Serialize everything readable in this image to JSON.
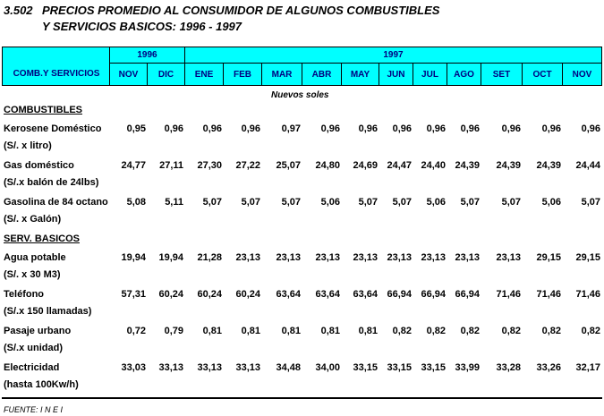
{
  "title": {
    "number": "3.502",
    "lines": [
      "PRECIOS PROMEDIO AL CONSUMIDOR DE ALGUNOS COMBUSTIBLES",
      "Y SERVICIOS BASICOS: 1996 - 1997"
    ]
  },
  "table": {
    "row_header": "COMB.Y SERVICIOS",
    "years": [
      {
        "label": "1996",
        "months": [
          "NOV",
          "DIC"
        ]
      },
      {
        "label": "1997",
        "months": [
          "ENE",
          "FEB",
          "MAR",
          "ABR",
          "MAY",
          "JUN",
          "JUL",
          "AGO",
          "SET",
          "OCT",
          "NOV"
        ]
      }
    ],
    "unit": "Nuevos soles",
    "sections": [
      {
        "title": "COMBUSTIBLES",
        "items": [
          {
            "name": "Kerosene Doméstico",
            "unit": "(S/. x litro)",
            "values": [
              "0,95",
              "0,96",
              "0,96",
              "0,96",
              "0,97",
              "0,96",
              "0,96",
              "0,96",
              "0,96",
              "0,96",
              "0,96",
              "0,96",
              "0,96"
            ]
          },
          {
            "name": "Gas doméstico",
            "unit": "(S/.x balón de 24lbs)",
            "values": [
              "24,77",
              "27,11",
              "27,30",
              "27,22",
              "25,07",
              "24,80",
              "24,69",
              "24,47",
              "24,40",
              "24,39",
              "24,39",
              "24,39",
              "24,44"
            ]
          },
          {
            "name": "Gasolina de 84 octano",
            "unit": "(S/. x Galón)",
            "values": [
              "5,08",
              "5,11",
              "5,07",
              "5,07",
              "5,07",
              "5,06",
              "5,07",
              "5,07",
              "5,06",
              "5,07",
              "5,07",
              "5,06",
              "5,07"
            ]
          }
        ]
      },
      {
        "title": "SERV. BASICOS",
        "items": [
          {
            "name": "Agua potable",
            "unit": "(S/. x 30 M3)",
            "values": [
              "19,94",
              "19,94",
              "21,28",
              "23,13",
              "23,13",
              "23,13",
              "23,13",
              "23,13",
              "23,13",
              "23,13",
              "23,13",
              "29,15",
              "29,15"
            ]
          },
          {
            "name": "Teléfono",
            "unit": "(S/.x 150 llamadas)",
            "values": [
              "57,31",
              "60,24",
              "60,24",
              "60,24",
              "63,64",
              "63,64",
              "63,64",
              "66,94",
              "66,94",
              "66,94",
              "71,46",
              "71,46",
              "71,46"
            ]
          },
          {
            "name": "Pasaje urbano",
            "unit": "(S/.x unidad)",
            "values": [
              "0,72",
              "0,79",
              "0,81",
              "0,81",
              "0,81",
              "0,81",
              "0,81",
              "0,82",
              "0,82",
              "0,82",
              "0,82",
              "0,82",
              "0,82"
            ]
          },
          {
            "name": "Electricidad",
            "unit": "(hasta 100Kw/h)",
            "values": [
              "33,03",
              "33,13",
              "33,13",
              "33,13",
              "34,48",
              "34,00",
              "33,15",
              "33,15",
              "33,15",
              "33,99",
              "33,28",
              "33,26",
              "32,17"
            ]
          }
        ]
      }
    ]
  },
  "footer": "FUENTE: I N E I"
}
